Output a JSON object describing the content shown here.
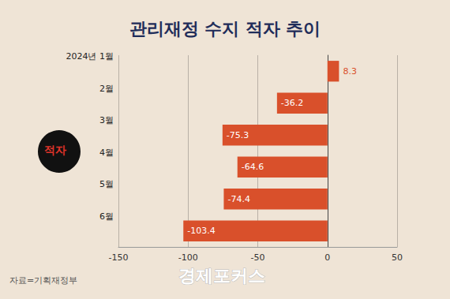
{
  "chart_data": {
    "type": "bar",
    "orientation": "horizontal",
    "title": "관리재정 수지 적자 추이",
    "categories": [
      "2024년 1월",
      "2월",
      "3월",
      "4월",
      "5월",
      "6월"
    ],
    "values": [
      8.3,
      -36.2,
      -75.3,
      -64.6,
      -74.4,
      -103.4
    ],
    "color": "#d9502b",
    "xlim": [
      -150,
      50
    ],
    "xticks": [
      -150,
      -100,
      -50,
      0,
      50
    ],
    "grid": true,
    "data_labels": true,
    "source": "자료=기획재정부",
    "watermark": "경제포커스",
    "icon_label": "적자"
  }
}
